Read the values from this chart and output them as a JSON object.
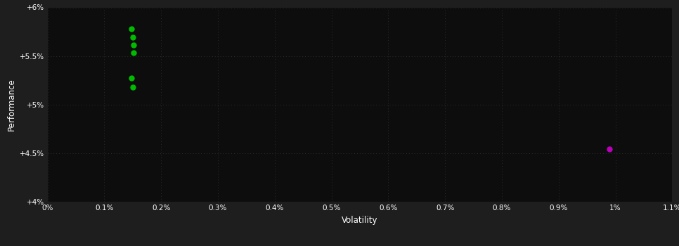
{
  "background_color": "#1e1e1e",
  "plot_bg_color": "#0d0d0d",
  "text_color": "#ffffff",
  "xlabel": "Volatility",
  "ylabel": "Performance",
  "xlim": [
    0.0,
    0.011
  ],
  "ylim": [
    0.04,
    0.06
  ],
  "x_ticks": [
    0.0,
    0.001,
    0.002,
    0.003,
    0.004,
    0.005,
    0.006,
    0.007,
    0.008,
    0.009,
    0.01,
    0.011
  ],
  "x_tick_labels": [
    "0%",
    "0.1%",
    "0.2%",
    "0.3%",
    "0.4%",
    "0.5%",
    "0.6%",
    "0.7%",
    "0.8%",
    "0.9%",
    "1%",
    "1.1%"
  ],
  "y_ticks": [
    0.04,
    0.045,
    0.05,
    0.055,
    0.06
  ],
  "y_tick_labels": [
    "+4%",
    "+4.5%",
    "+5%",
    "+5.5%",
    "+6%"
  ],
  "green_points": [
    [
      0.00148,
      0.0578
    ],
    [
      0.0015,
      0.0569
    ],
    [
      0.00151,
      0.0561
    ],
    [
      0.00152,
      0.0553
    ],
    [
      0.00148,
      0.0527
    ],
    [
      0.0015,
      0.0518
    ]
  ],
  "magenta_point": [
    0.0099,
    0.0454
  ],
  "point_size": 25,
  "green_color": "#00bb00",
  "magenta_color": "#bb00bb",
  "grid_color": "#2d2d2d",
  "grid_linestyle": "dotted",
  "grid_linewidth": 0.7,
  "tick_fontsize": 7.5,
  "label_fontsize": 8.5
}
